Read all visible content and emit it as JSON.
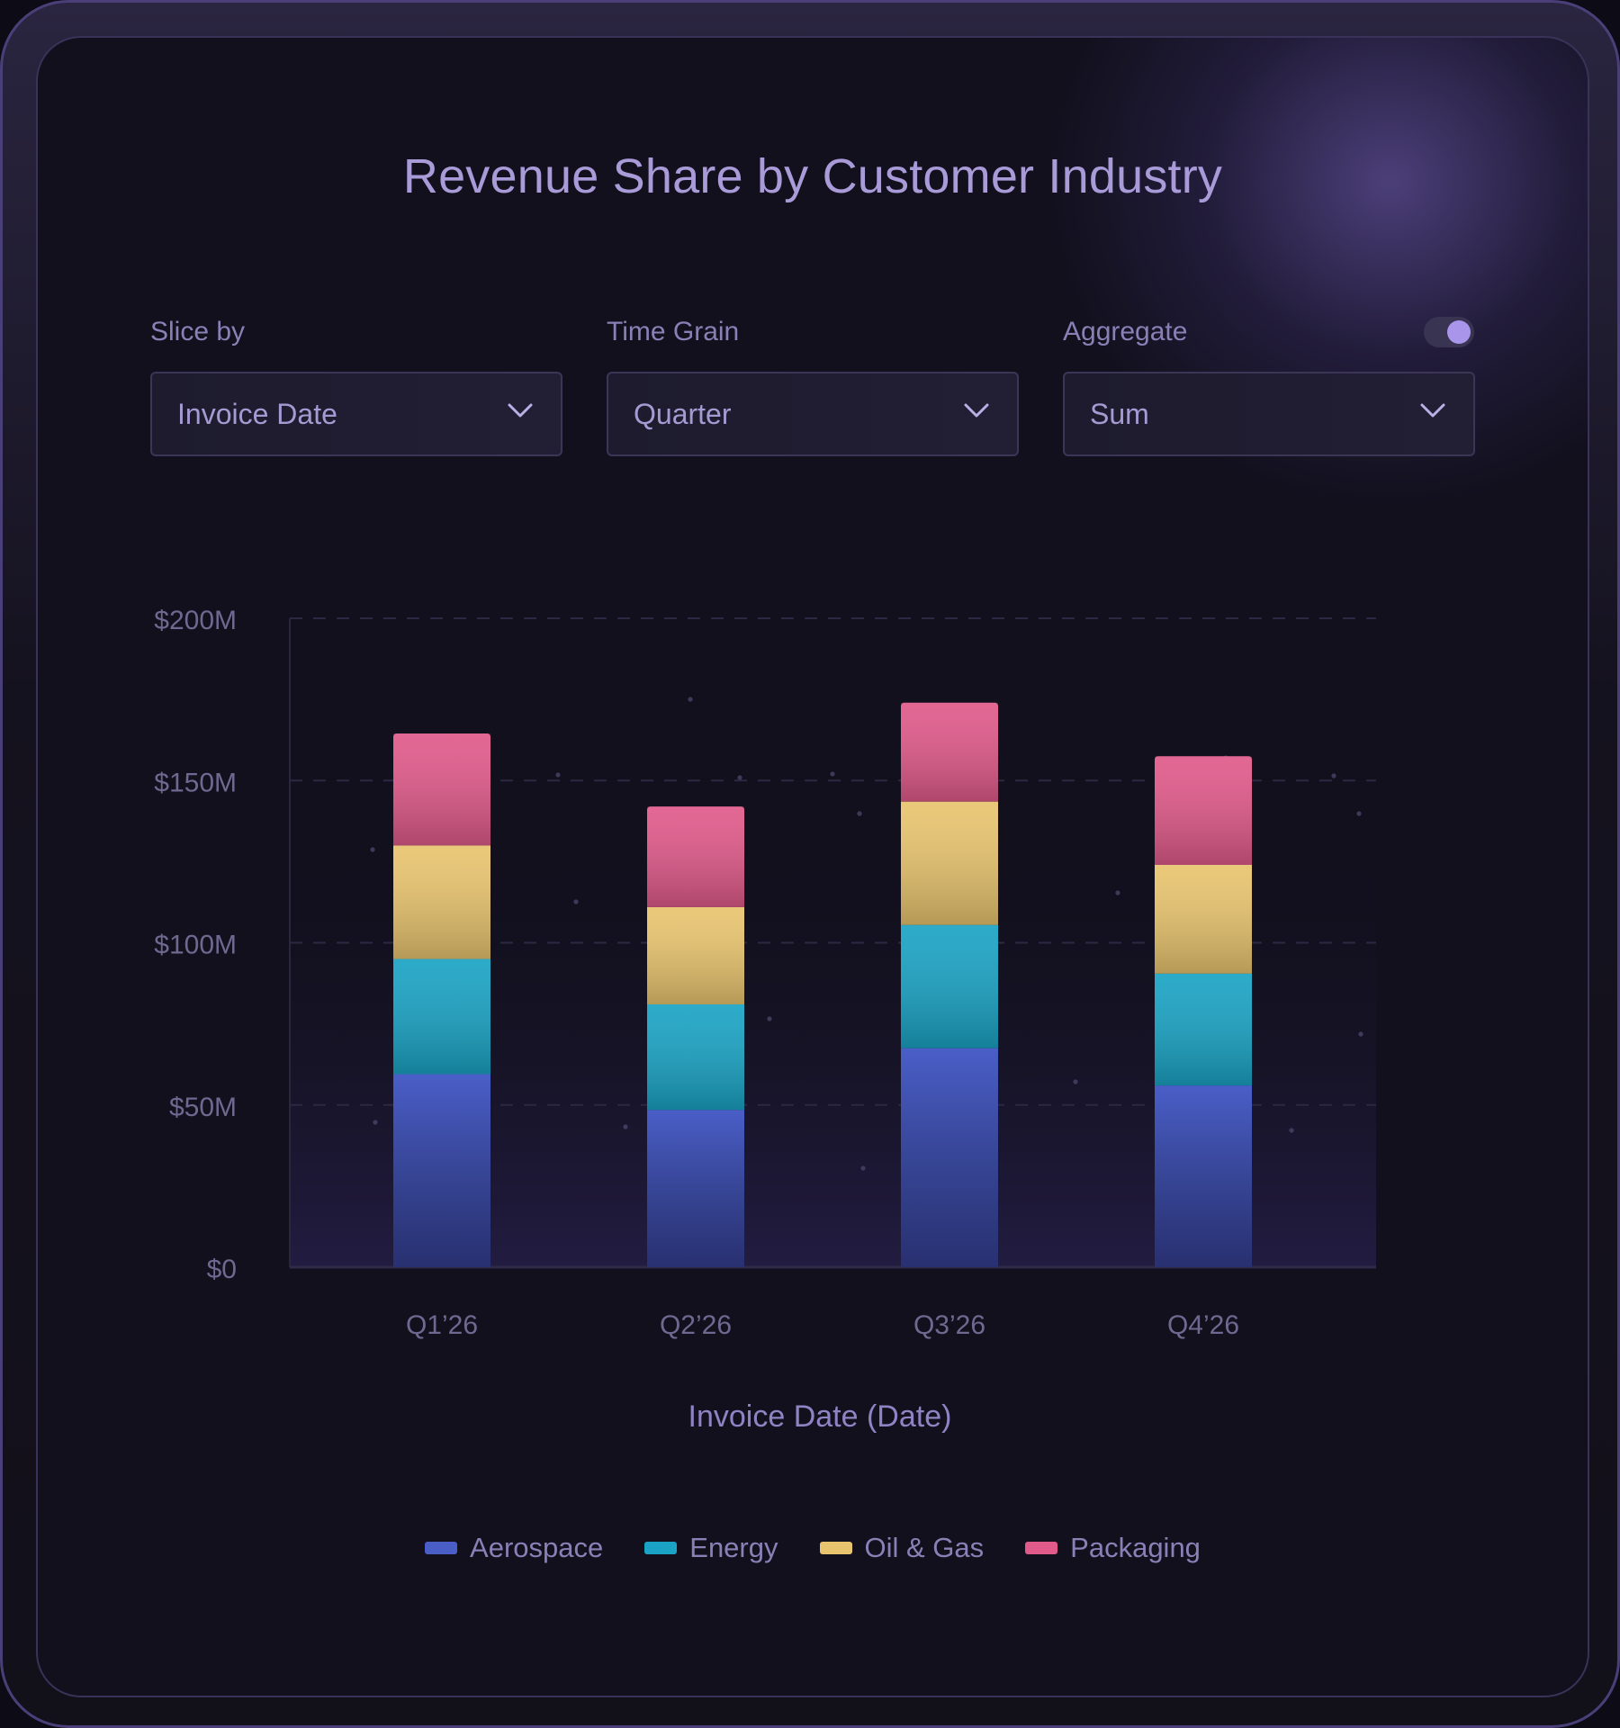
{
  "colors": {
    "aerospace": "#4a5ec8",
    "energy": "#1aa3c4",
    "oil_gas": "#e8c46e",
    "packaging": "#e05a8a",
    "accent": "#a996ea"
  },
  "controls": {
    "slice_by": {
      "label": "Slice by",
      "value": "Invoice Date"
    },
    "time_grain": {
      "label": "Time Grain",
      "value": "Quarter"
    },
    "aggregate": {
      "label": "Aggregate",
      "value": "Sum",
      "toggle_on": true
    }
  },
  "chart_data": {
    "type": "bar",
    "stacked": true,
    "title": "Revenue Share by Customer Industry",
    "xlabel": "Invoice Date (Date)",
    "ylabel": "",
    "ylim": [
      0,
      200
    ],
    "yticks": [
      0,
      50,
      100,
      150,
      200
    ],
    "ytick_labels": [
      "$0",
      "$50M",
      "$100M",
      "$150M",
      "$200M"
    ],
    "categories": [
      "Q1’26",
      "Q2’26",
      "Q3’26",
      "Q4’26"
    ],
    "series": [
      {
        "name": "Aerospace",
        "key": "aerospace",
        "values": [
          59.5,
          48.5,
          67.5,
          56
        ]
      },
      {
        "name": "Energy",
        "key": "energy",
        "values": [
          35.5,
          32.5,
          38,
          34.5
        ]
      },
      {
        "name": "Oil & Gas",
        "key": "oil_gas",
        "values": [
          35,
          30,
          38,
          33.5
        ]
      },
      {
        "name": "Packaging",
        "key": "packaging",
        "values": [
          34.5,
          31,
          30.5,
          33.5
        ]
      }
    ],
    "legend_position": "bottom",
    "grid": true
  }
}
